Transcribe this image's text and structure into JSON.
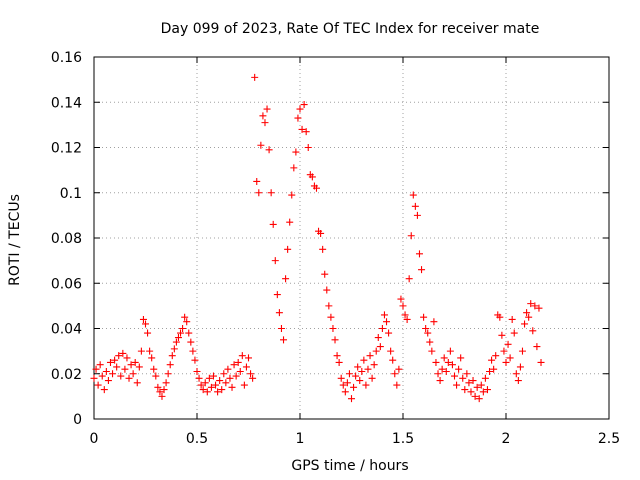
{
  "chart_data": {
    "type": "scatter",
    "title": "Day 099 of 2023, Rate Of TEC Index for receiver mate",
    "xlabel": "GPS time / hours",
    "ylabel": "ROTI / TECUs",
    "xlim": [
      0,
      2.5
    ],
    "ylim": [
      0,
      0.16
    ],
    "x_ticks": [
      {
        "value": 0,
        "label": "0"
      },
      {
        "value": 0.5,
        "label": "0.5"
      },
      {
        "value": 1,
        "label": "1"
      },
      {
        "value": 1.5,
        "label": "1.5"
      },
      {
        "value": 2,
        "label": "2"
      },
      {
        "value": 2.5,
        "label": "2.5"
      }
    ],
    "y_ticks": [
      {
        "value": 0,
        "label": "0"
      },
      {
        "value": 0.02,
        "label": "0.02"
      },
      {
        "value": 0.04,
        "label": "0.04"
      },
      {
        "value": 0.06,
        "label": "0.06"
      },
      {
        "value": 0.08,
        "label": "0.08"
      },
      {
        "value": 0.1,
        "label": "0.1"
      },
      {
        "value": 0.12,
        "label": "0.12"
      },
      {
        "value": 0.14,
        "label": "0.14"
      },
      {
        "value": 0.16,
        "label": "0.16"
      }
    ],
    "grid": true,
    "marker": "+",
    "color": "#ff0000",
    "series": [
      {
        "name": "ROTI",
        "points": [
          [
            0.0,
            0.018
          ],
          [
            0.01,
            0.022
          ],
          [
            0.02,
            0.015
          ],
          [
            0.03,
            0.024
          ],
          [
            0.04,
            0.019
          ],
          [
            0.05,
            0.013
          ],
          [
            0.06,
            0.021
          ],
          [
            0.07,
            0.017
          ],
          [
            0.08,
            0.025
          ],
          [
            0.09,
            0.02
          ],
          [
            0.1,
            0.026
          ],
          [
            0.11,
            0.023
          ],
          [
            0.12,
            0.028
          ],
          [
            0.13,
            0.019
          ],
          [
            0.14,
            0.029
          ],
          [
            0.15,
            0.022
          ],
          [
            0.16,
            0.027
          ],
          [
            0.17,
            0.018
          ],
          [
            0.18,
            0.024
          ],
          [
            0.19,
            0.02
          ],
          [
            0.2,
            0.025
          ],
          [
            0.21,
            0.016
          ],
          [
            0.22,
            0.023
          ],
          [
            0.23,
            0.03
          ],
          [
            0.24,
            0.044
          ],
          [
            0.25,
            0.042
          ],
          [
            0.26,
            0.038
          ],
          [
            0.27,
            0.03
          ],
          [
            0.28,
            0.027
          ],
          [
            0.29,
            0.022
          ],
          [
            0.3,
            0.019
          ],
          [
            0.31,
            0.014
          ],
          [
            0.32,
            0.012
          ],
          [
            0.33,
            0.01
          ],
          [
            0.34,
            0.013
          ],
          [
            0.35,
            0.016
          ],
          [
            0.36,
            0.02
          ],
          [
            0.37,
            0.024
          ],
          [
            0.38,
            0.028
          ],
          [
            0.39,
            0.031
          ],
          [
            0.4,
            0.034
          ],
          [
            0.41,
            0.036
          ],
          [
            0.42,
            0.038
          ],
          [
            0.43,
            0.04
          ],
          [
            0.44,
            0.045
          ],
          [
            0.45,
            0.043
          ],
          [
            0.46,
            0.038
          ],
          [
            0.47,
            0.034
          ],
          [
            0.48,
            0.03
          ],
          [
            0.49,
            0.026
          ],
          [
            0.5,
            0.021
          ],
          [
            0.51,
            0.018
          ],
          [
            0.52,
            0.015
          ],
          [
            0.53,
            0.013
          ],
          [
            0.54,
            0.016
          ],
          [
            0.55,
            0.012
          ],
          [
            0.56,
            0.018
          ],
          [
            0.57,
            0.014
          ],
          [
            0.58,
            0.019
          ],
          [
            0.59,
            0.015
          ],
          [
            0.6,
            0.012
          ],
          [
            0.61,
            0.017
          ],
          [
            0.62,
            0.013
          ],
          [
            0.63,
            0.02
          ],
          [
            0.64,
            0.016
          ],
          [
            0.65,
            0.022
          ],
          [
            0.66,
            0.018
          ],
          [
            0.67,
            0.014
          ],
          [
            0.68,
            0.024
          ],
          [
            0.69,
            0.019
          ],
          [
            0.7,
            0.025
          ],
          [
            0.71,
            0.021
          ],
          [
            0.72,
            0.028
          ],
          [
            0.73,
            0.015
          ],
          [
            0.74,
            0.023
          ],
          [
            0.75,
            0.027
          ],
          [
            0.76,
            0.02
          ],
          [
            0.77,
            0.018
          ],
          [
            0.78,
            0.151
          ],
          [
            0.79,
            0.105
          ],
          [
            0.8,
            0.1
          ],
          [
            0.81,
            0.121
          ],
          [
            0.82,
            0.134
          ],
          [
            0.83,
            0.131
          ],
          [
            0.84,
            0.137
          ],
          [
            0.85,
            0.119
          ],
          [
            0.86,
            0.1
          ],
          [
            0.87,
            0.086
          ],
          [
            0.88,
            0.07
          ],
          [
            0.89,
            0.055
          ],
          [
            0.9,
            0.047
          ],
          [
            0.91,
            0.04
          ],
          [
            0.92,
            0.035
          ],
          [
            0.93,
            0.062
          ],
          [
            0.94,
            0.075
          ],
          [
            0.95,
            0.087
          ],
          [
            0.96,
            0.099
          ],
          [
            0.97,
            0.111
          ],
          [
            0.98,
            0.118
          ],
          [
            0.99,
            0.133
          ],
          [
            1.0,
            0.137
          ],
          [
            1.01,
            0.128
          ],
          [
            1.02,
            0.139
          ],
          [
            1.03,
            0.127
          ],
          [
            1.04,
            0.12
          ],
          [
            1.05,
            0.108
          ],
          [
            1.06,
            0.107
          ],
          [
            1.07,
            0.103
          ],
          [
            1.08,
            0.102
          ],
          [
            1.09,
            0.083
          ],
          [
            1.1,
            0.082
          ],
          [
            1.11,
            0.075
          ],
          [
            1.12,
            0.064
          ],
          [
            1.13,
            0.057
          ],
          [
            1.14,
            0.05
          ],
          [
            1.15,
            0.045
          ],
          [
            1.16,
            0.04
          ],
          [
            1.17,
            0.035
          ],
          [
            1.18,
            0.028
          ],
          [
            1.19,
            0.025
          ],
          [
            1.2,
            0.018
          ],
          [
            1.21,
            0.015
          ],
          [
            1.22,
            0.012
          ],
          [
            1.23,
            0.016
          ],
          [
            1.24,
            0.02
          ],
          [
            1.25,
            0.009
          ],
          [
            1.26,
            0.014
          ],
          [
            1.27,
            0.019
          ],
          [
            1.28,
            0.023
          ],
          [
            1.29,
            0.017
          ],
          [
            1.3,
            0.021
          ],
          [
            1.31,
            0.026
          ],
          [
            1.32,
            0.015
          ],
          [
            1.33,
            0.022
          ],
          [
            1.34,
            0.028
          ],
          [
            1.35,
            0.018
          ],
          [
            1.36,
            0.024
          ],
          [
            1.37,
            0.03
          ],
          [
            1.38,
            0.036
          ],
          [
            1.39,
            0.032
          ],
          [
            1.4,
            0.04
          ],
          [
            1.41,
            0.046
          ],
          [
            1.42,
            0.043
          ],
          [
            1.43,
            0.038
          ],
          [
            1.44,
            0.03
          ],
          [
            1.45,
            0.026
          ],
          [
            1.46,
            0.02
          ],
          [
            1.47,
            0.015
          ],
          [
            1.48,
            0.022
          ],
          [
            1.49,
            0.053
          ],
          [
            1.5,
            0.05
          ],
          [
            1.51,
            0.046
          ],
          [
            1.52,
            0.044
          ],
          [
            1.53,
            0.062
          ],
          [
            1.54,
            0.081
          ],
          [
            1.55,
            0.099
          ],
          [
            1.56,
            0.094
          ],
          [
            1.57,
            0.09
          ],
          [
            1.58,
            0.073
          ],
          [
            1.59,
            0.066
          ],
          [
            1.6,
            0.045
          ],
          [
            1.61,
            0.04
          ],
          [
            1.62,
            0.038
          ],
          [
            1.63,
            0.034
          ],
          [
            1.64,
            0.03
          ],
          [
            1.65,
            0.043
          ],
          [
            1.66,
            0.025
          ],
          [
            1.67,
            0.02
          ],
          [
            1.68,
            0.017
          ],
          [
            1.69,
            0.022
          ],
          [
            1.7,
            0.027
          ],
          [
            1.71,
            0.021
          ],
          [
            1.72,
            0.025
          ],
          [
            1.73,
            0.03
          ],
          [
            1.74,
            0.024
          ],
          [
            1.75,
            0.019
          ],
          [
            1.76,
            0.015
          ],
          [
            1.77,
            0.022
          ],
          [
            1.78,
            0.027
          ],
          [
            1.79,
            0.018
          ],
          [
            1.8,
            0.013
          ],
          [
            1.81,
            0.02
          ],
          [
            1.82,
            0.016
          ],
          [
            1.83,
            0.012
          ],
          [
            1.84,
            0.017
          ],
          [
            1.85,
            0.01
          ],
          [
            1.86,
            0.014
          ],
          [
            1.87,
            0.009
          ],
          [
            1.88,
            0.015
          ],
          [
            1.89,
            0.012
          ],
          [
            1.9,
            0.018
          ],
          [
            1.91,
            0.013
          ],
          [
            1.92,
            0.021
          ],
          [
            1.93,
            0.026
          ],
          [
            1.94,
            0.022
          ],
          [
            1.95,
            0.028
          ],
          [
            1.96,
            0.046
          ],
          [
            1.97,
            0.045
          ],
          [
            1.98,
            0.037
          ],
          [
            1.99,
            0.03
          ],
          [
            2.0,
            0.025
          ],
          [
            2.01,
            0.033
          ],
          [
            2.02,
            0.027
          ],
          [
            2.03,
            0.044
          ],
          [
            2.04,
            0.038
          ],
          [
            2.05,
            0.02
          ],
          [
            2.06,
            0.017
          ],
          [
            2.07,
            0.023
          ],
          [
            2.08,
            0.03
          ],
          [
            2.09,
            0.042
          ],
          [
            2.1,
            0.047
          ],
          [
            2.11,
            0.045
          ],
          [
            2.12,
            0.051
          ],
          [
            2.13,
            0.039
          ],
          [
            2.14,
            0.05
          ],
          [
            2.15,
            0.032
          ],
          [
            2.16,
            0.049
          ],
          [
            2.17,
            0.025
          ]
        ]
      }
    ]
  }
}
